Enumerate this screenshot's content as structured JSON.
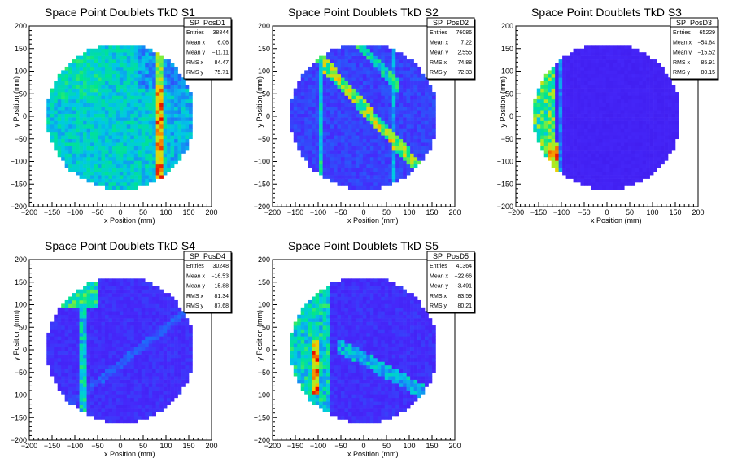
{
  "chart_data": [
    {
      "type": "heatmap",
      "title": "Space Point Doublets TkD S1",
      "xlabel": "x Position (mm)",
      "ylabel": "y Position (mm)",
      "xlim": [
        -200,
        200
      ],
      "ylim": [
        -200,
        200
      ],
      "xticks": [
        -200,
        -150,
        -100,
        -50,
        0,
        50,
        100,
        150,
        200
      ],
      "yticks": [
        -200,
        -150,
        -100,
        -50,
        0,
        50,
        100,
        150,
        200
      ],
      "stats": {
        "name": "SP_PosD1",
        "rows": [
          {
            "label": "Entries",
            "value": "38844"
          },
          {
            "label": "Mean x",
            "value": "6.06"
          },
          {
            "label": "Mean y",
            "value": "−11.11"
          },
          {
            "label": "RMS x",
            "value": "84.47"
          },
          {
            "label": "RMS y",
            "value": "75.71"
          }
        ]
      }
    },
    {
      "type": "heatmap",
      "title": "Space Point Doublets TkD S2",
      "xlabel": "x Position (mm)",
      "ylabel": "y Position (mm)",
      "xlim": [
        -200,
        200
      ],
      "ylim": [
        -200,
        200
      ],
      "xticks": [
        -200,
        -150,
        -100,
        -50,
        0,
        50,
        100,
        150,
        200
      ],
      "yticks": [
        -200,
        -150,
        -100,
        -50,
        0,
        50,
        100,
        150,
        200
      ],
      "stats": {
        "name": "SP_PosD2",
        "rows": [
          {
            "label": "Entries",
            "value": "76086"
          },
          {
            "label": "Mean x",
            "value": "7.22"
          },
          {
            "label": "Mean y",
            "value": "2.555"
          },
          {
            "label": "RMS x",
            "value": "74.88"
          },
          {
            "label": "RMS y",
            "value": "72.33"
          }
        ]
      }
    },
    {
      "type": "heatmap",
      "title": "Space Point Doublets TkD S3",
      "xlabel": "x Position (mm)",
      "ylabel": "y Position (mm)",
      "xlim": [
        -200,
        200
      ],
      "ylim": [
        -200,
        200
      ],
      "xticks": [
        -200,
        -150,
        -100,
        -50,
        0,
        50,
        100,
        150,
        200
      ],
      "yticks": [
        -200,
        -150,
        -100,
        -50,
        0,
        50,
        100,
        150,
        200
      ],
      "stats": {
        "name": "SP_PosD3",
        "rows": [
          {
            "label": "Entries",
            "value": "65229"
          },
          {
            "label": "Mean x",
            "value": "−54.84"
          },
          {
            "label": "Mean y",
            "value": "−15.52"
          },
          {
            "label": "RMS x",
            "value": "85.91"
          },
          {
            "label": "RMS y",
            "value": "80.15"
          }
        ]
      }
    },
    {
      "type": "heatmap",
      "title": "Space Point Doublets TkD S4",
      "xlabel": "x Position (mm)",
      "ylabel": "y Position (mm)",
      "xlim": [
        -200,
        200
      ],
      "ylim": [
        -200,
        200
      ],
      "xticks": [
        -200,
        -150,
        -100,
        -50,
        0,
        50,
        100,
        150,
        200
      ],
      "yticks": [
        -200,
        -150,
        -100,
        -50,
        0,
        50,
        100,
        150,
        200
      ],
      "stats": {
        "name": "SP_PosD4",
        "rows": [
          {
            "label": "Entries",
            "value": "30248"
          },
          {
            "label": "Mean x",
            "value": "−16.53"
          },
          {
            "label": "Mean y",
            "value": "15.88"
          },
          {
            "label": "RMS x",
            "value": "81.34"
          },
          {
            "label": "RMS y",
            "value": "87.68"
          }
        ]
      }
    },
    {
      "type": "heatmap",
      "title": "Space Point Doublets TkD S5",
      "xlabel": "x Position (mm)",
      "ylabel": "y Position (mm)",
      "xlim": [
        -200,
        200
      ],
      "ylim": [
        -200,
        200
      ],
      "xticks": [
        -200,
        -150,
        -100,
        -50,
        0,
        50,
        100,
        150,
        200
      ],
      "yticks": [
        -200,
        -150,
        -100,
        -50,
        0,
        50,
        100,
        150,
        200
      ],
      "stats": {
        "name": "SP_PosD5",
        "rows": [
          {
            "label": "Entries",
            "value": "41364"
          },
          {
            "label": "Mean x",
            "value": "−22.66"
          },
          {
            "label": "Mean y",
            "value": "−3.491"
          },
          {
            "label": "RMS x",
            "value": "83.59"
          },
          {
            "label": "RMS y",
            "value": "80.21"
          }
        ]
      }
    }
  ]
}
